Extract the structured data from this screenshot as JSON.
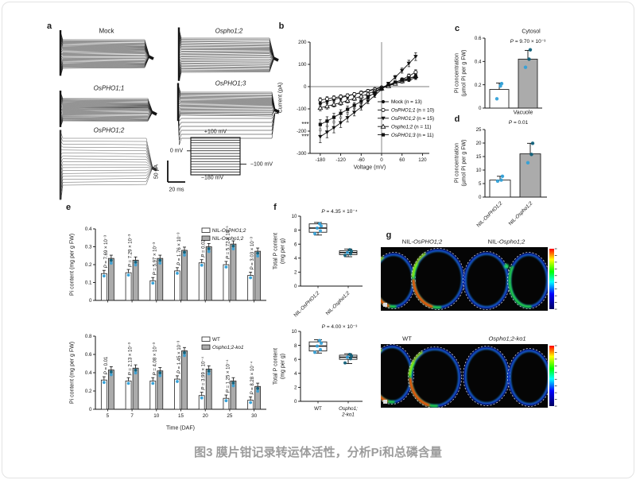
{
  "figure": {
    "caption": "图3 膜片钳记录转运体活性，分析Pi和总磷含量"
  },
  "panels": {
    "a": "a",
    "b": "b",
    "c": "c",
    "d": "d",
    "e": "e",
    "f": "f",
    "g": "g"
  },
  "panel_a": {
    "trace_labels": [
      {
        "prefix": "Mock",
        "gene": ""
      },
      {
        "prefix": "",
        "gene": "Ospho1;2"
      },
      {
        "prefix": "",
        "gene": "OsPHO1;1"
      },
      {
        "prefix": "",
        "gene": "OsPHO1;3"
      },
      {
        "prefix": "",
        "gene": "OsPHO1;2"
      }
    ],
    "protocol": {
      "top": "+100 mV",
      "zero": "0 mV",
      "minus_100": "−100 mV",
      "bottom": "−180 mV"
    },
    "scale_bar": {
      "vertical": "50 pA",
      "horizontal": "20 ms"
    }
  },
  "chart_data": [
    {
      "id": "iv",
      "type": "line",
      "xlabel": "Voltage (mV)",
      "ylabel": "Current (pA)",
      "xlim": [
        -210,
        140
      ],
      "ylim": [
        -300,
        200
      ],
      "xticks": [
        -180,
        -120,
        -60,
        0,
        60,
        120
      ],
      "yticks": [
        -300,
        -200,
        -100,
        0,
        100,
        200
      ],
      "legend_position": "inside-bottom-right",
      "x": [
        -180,
        -160,
        -140,
        -120,
        -100,
        -80,
        -60,
        -40,
        -20,
        0,
        20,
        40,
        60,
        80,
        100
      ],
      "series": [
        {
          "name": "Mock",
          "italic": false,
          "n_label": "(n = 13)",
          "marker": "circle-filled",
          "values": [
            -75,
            -66,
            -58,
            -50,
            -42,
            -34,
            -26,
            -18,
            -10,
            -2,
            6,
            14,
            22,
            30,
            40
          ]
        },
        {
          "name": "OsPHO1;1",
          "italic": true,
          "n_label": "(n = 10)",
          "marker": "circle-open",
          "values": [
            -60,
            -55,
            -50,
            -45,
            -40,
            -34,
            -28,
            -20,
            -12,
            -4,
            6,
            18,
            32,
            48,
            65
          ]
        },
        {
          "name": "OsPHO1;2",
          "italic": true,
          "n_label": "(n = 15)",
          "marker": "triangle-down-filled",
          "values": [
            -225,
            -205,
            -185,
            -163,
            -140,
            -116,
            -92,
            -66,
            -40,
            -12,
            14,
            42,
            72,
            104,
            135
          ]
        },
        {
          "name": "Ospho1;2",
          "italic": true,
          "n_label": "(n = 11)",
          "marker": "triangle-up-open",
          "values": [
            -95,
            -88,
            -80,
            -72,
            -63,
            -53,
            -43,
            -32,
            -20,
            -8,
            3,
            14,
            25,
            36,
            48
          ]
        },
        {
          "name": "OsPHO1;3",
          "italic": true,
          "n_label": "(n = 11)",
          "marker": "square-filled",
          "values": [
            -170,
            -155,
            -138,
            -120,
            -102,
            -84,
            -66,
            -47,
            -28,
            -8,
            8,
            20,
            30,
            38,
            45
          ]
        }
      ],
      "annotations": [
        {
          "text": "***",
          "y": -170
        },
        {
          "text": "***",
          "y": -225
        }
      ]
    },
    {
      "id": "cyt",
      "type": "bar",
      "title": "Cytosol",
      "p_label": "P = 9.70 × 10⁻³",
      "ylabel": "Pi concentration\n(µmol Pi per g FW)",
      "ylim": [
        0,
        0.6
      ],
      "yticks": [
        0,
        0.2,
        0.4,
        0.6
      ],
      "categories": [
        {
          "prefix": "NIL-",
          "gene": "OsPHO1;2"
        },
        {
          "prefix": "NIL-",
          "gene": "Ospho1;2"
        }
      ],
      "show_xticklabels": false,
      "values": [
        0.16,
        0.42
      ],
      "errors": [
        0.055,
        0.075
      ],
      "bar_fills": [
        "#ffffff",
        "#ababab"
      ],
      "points": [
        [
          0.08,
          0.19,
          0.21
        ],
        [
          0.35,
          0.42,
          0.5
        ]
      ]
    },
    {
      "id": "vac",
      "type": "bar",
      "title": "Vacuole",
      "p_label": "P = 0.01",
      "ylabel": "Pi concentration\n(µmol Pi per g FW)",
      "ylim": [
        0,
        25
      ],
      "yticks": [
        0,
        5,
        10,
        15,
        20,
        25
      ],
      "categories": [
        {
          "prefix": "NIL-",
          "gene": "OsPHO1;2"
        },
        {
          "prefix": "NIL-",
          "gene": "Ospho1;2"
        }
      ],
      "show_xticklabels": true,
      "values": [
        6.3,
        16
      ],
      "errors": [
        1.4,
        3.9
      ],
      "bar_fills": [
        "#ffffff",
        "#ababab"
      ],
      "points": [
        [
          5.9,
          6.3,
          7.7
        ],
        [
          12.7,
          15.8,
          19.9
        ]
      ]
    },
    {
      "id": "etop",
      "type": "groupbar",
      "ylabel": "Pi content (mg per g FW)",
      "xlabel": "",
      "ylim": [
        0,
        0.4
      ],
      "yticks": [
        0,
        0.1,
        0.2,
        0.3,
        0.4
      ],
      "categories": [
        "5",
        "7",
        "10",
        "15",
        "20",
        "25",
        "30"
      ],
      "show_xticklabels": false,
      "series": [
        {
          "prefix": "NIL-",
          "gene": "OsPHO1;2",
          "fill": "#ffffff",
          "values": [
            0.15,
            0.155,
            0.11,
            0.165,
            0.21,
            0.2,
            0.14
          ]
        },
        {
          "prefix": "NIL-",
          "gene": "Ospho1;2",
          "fill": "#ababab",
          "values": [
            0.235,
            0.225,
            0.235,
            0.28,
            0.3,
            0.315,
            0.275
          ]
        }
      ],
      "p_values": [
        "P = 7.69 × 10⁻³",
        "P = 7.29 × 10⁻³",
        "P = 5.97 × 10⁻³",
        "P = 1.76 × 10⁻³",
        "P = 0.02",
        "P = 5.72 × 10⁻⁵",
        "P = 3.03 × 10⁻³"
      ]
    },
    {
      "id": "ebot",
      "type": "groupbar",
      "ylabel": "Pi content (mg per g FW)",
      "xlabel": "Time (DAF)",
      "ylim": [
        0,
        0.8
      ],
      "yticks": [
        0,
        0.2,
        0.4,
        0.6,
        0.8
      ],
      "categories": [
        "5",
        "7",
        "10",
        "15",
        "20",
        "25",
        "30"
      ],
      "show_xticklabels": true,
      "series": [
        {
          "prefix": "WT",
          "gene": "",
          "fill": "#ffffff",
          "values": [
            0.32,
            0.31,
            0.31,
            0.33,
            0.15,
            0.12,
            0.1
          ]
        },
        {
          "prefix": "",
          "gene": "Ospho1;2-ko1",
          "fill": "#ababab",
          "values": [
            0.43,
            0.45,
            0.42,
            0.64,
            0.44,
            0.31,
            0.25
          ]
        }
      ],
      "p_values": [
        "P = 0.01",
        "P = 2.13 × 10⁻³",
        "P = 4.08 × 10⁻³",
        "P = 1.45 × 10⁻³",
        "P = 3.99 × 10⁻⁴",
        "P = 1.25 × 10⁻⁴",
        "P = 8.28 × 10⁻⁴"
      ]
    },
    {
      "id": "ftop",
      "type": "box",
      "p_label": "P = 4.35 × 10⁻⁴",
      "ylabel": "Total P content\n(mg per g)",
      "ylim": [
        0,
        10
      ],
      "yticks": [
        0,
        2,
        4,
        6,
        8,
        10
      ],
      "categories": [
        {
          "prefix": "NIL-",
          "gene": "OsPHO1;2"
        },
        {
          "prefix": "NIL-",
          "gene": "Ospho1;2"
        }
      ],
      "rotated_xticklabels": true,
      "boxes": [
        {
          "whislo": 7.3,
          "q1": 7.7,
          "med": 8.3,
          "q3": 8.9,
          "whishi": 9.1,
          "points": [
            7.5,
            7.9,
            8.3,
            8.6,
            8.9
          ]
        },
        {
          "whislo": 4.2,
          "q1": 4.5,
          "med": 4.8,
          "q3": 5.05,
          "whishi": 5.3,
          "points": [
            4.4,
            4.6,
            4.8,
            5.0,
            5.2
          ]
        }
      ]
    },
    {
      "id": "fbot",
      "type": "box",
      "p_label": "P = 4.00 × 10⁻³",
      "ylabel": "Total P content\n(mg per g)",
      "ylim": [
        0,
        10
      ],
      "yticks": [
        0,
        2,
        4,
        6,
        8,
        10
      ],
      "categories": [
        {
          "prefix": "WT",
          "gene": ""
        },
        {
          "prefix": "",
          "gene": "Ospho1;\n2-ko1"
        }
      ],
      "rotated_xticklabels": false,
      "boxes": [
        {
          "whislo": 6.9,
          "q1": 7.2,
          "med": 7.9,
          "q3": 8.5,
          "whishi": 8.8,
          "points": [
            7.0,
            7.4,
            7.9,
            8.3,
            8.7
          ]
        },
        {
          "whislo": 5.4,
          "q1": 6.0,
          "med": 6.3,
          "q3": 6.6,
          "whishi": 6.8,
          "points": [
            5.5,
            6.1,
            6.3,
            6.5,
            6.7
          ]
        }
      ]
    }
  ],
  "panel_g": {
    "groups": [
      {
        "labels": [
          {
            "prefix": "NIL-",
            "gene": "OsPHO1;2"
          },
          {
            "prefix": "NIL-",
            "gene": "Ospho1;2"
          }
        ]
      },
      {
        "labels": [
          {
            "prefix": "WT",
            "gene": ""
          },
          {
            "prefix": "",
            "gene": "Ospho1;2-ko1"
          }
        ]
      }
    ],
    "colorbar_colors": [
      "#ff0000",
      "#ffff00",
      "#00ff00",
      "#00ffff",
      "#0000ff",
      "#000060"
    ]
  },
  "colors": {
    "point_blue": "#2e9fd8",
    "point_teal": "#0c5e79",
    "bar_gray": "#ababab",
    "caption_gray": "#9c9c9c"
  }
}
